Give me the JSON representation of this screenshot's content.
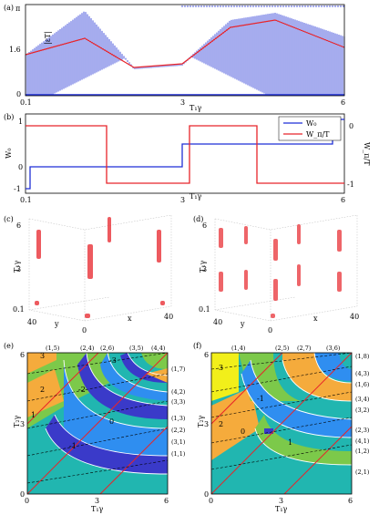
{
  "panels": {
    "a": {
      "label": "(a)",
      "ylabel": "|εT|",
      "xlabel": "T₁γ",
      "yticks": [
        "π",
        "1.6",
        "0"
      ],
      "xticks": [
        "0.1",
        "3",
        "6"
      ]
    },
    "b": {
      "label": "(b)",
      "ylabel_left": "W₀",
      "ylabel_right": "W_π/T",
      "xlabel": "T₁γ",
      "yticks_left": [
        "1",
        "0",
        "-1"
      ],
      "yticks_right": [
        "0",
        "-1"
      ],
      "xticks": [
        "0.1",
        "3",
        "6"
      ],
      "legend": [
        "W₀",
        "W_π/T"
      ]
    },
    "c": {
      "label": "(c)",
      "zlabel": "T₁γ",
      "xlabel": "x",
      "ylabel": "y",
      "zticks": [
        "6",
        "3",
        "0.1"
      ],
      "bottom_ticks": [
        "40",
        "0",
        "40"
      ]
    },
    "d": {
      "label": "(d)",
      "zlabel": "T₁γ",
      "xlabel": "x",
      "ylabel": "y",
      "zticks": [
        "6",
        "3",
        "0.1"
      ],
      "bottom_ticks": [
        "40",
        "0",
        "40"
      ]
    },
    "e": {
      "label": "(e)",
      "ylabel": "T₂γ",
      "xlabel": "T₁γ",
      "yticks": [
        "6",
        "3",
        "0"
      ],
      "xticks": [
        "0",
        "3",
        "6"
      ],
      "top_labels": [
        "(1,5)",
        "(2,4)",
        "(2,6)",
        "(3,5)",
        "(4,4)"
      ],
      "right_labels": [
        "(1,7)",
        "(4,2)",
        "(3,3)",
        "(1,3)",
        "(2,2)",
        "(3,1)",
        "(1,1)"
      ],
      "region_labels": [
        "3",
        "-3",
        "2",
        "-2",
        "1",
        "0",
        "-1"
      ]
    },
    "f": {
      "label": "(f)",
      "ylabel": "T₂γ",
      "xlabel": "T₁γ",
      "yticks": [
        "6",
        "3",
        "0"
      ],
      "xticks": [
        "0",
        "3",
        "6"
      ],
      "top_labels": [
        "(1,4)",
        "(2,5)",
        "(2,7)",
        "(3,6)"
      ],
      "right_labels": [
        "(1,8)",
        "(4,3)",
        "(1,6)",
        "(3,4)",
        "(3,2)",
        "(2,3)",
        "(4,1)",
        "(1,2)",
        "(2,1)"
      ],
      "region_labels": [
        "3",
        "2",
        "-1",
        "0",
        "1"
      ]
    }
  },
  "colors": {
    "blue": "#1f2fd6",
    "red": "#e8242a",
    "teal": "#21b6b0",
    "green": "#7cc94a",
    "orange": "#f5ab3c",
    "yellow": "#f2ef1a",
    "sky": "#2f8ef0",
    "indigo": "#3a3ac9"
  }
}
